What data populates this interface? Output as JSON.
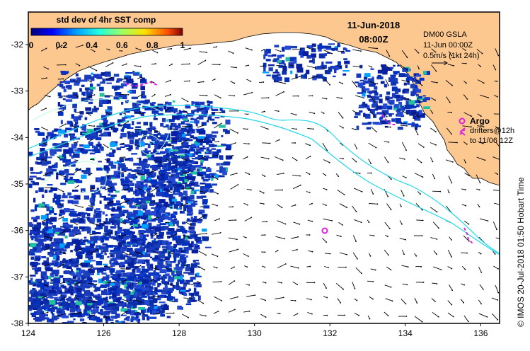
{
  "map": {
    "lon_range": [
      124,
      136.5
    ],
    "lat_range": [
      -38,
      -31.3
    ],
    "lon_ticks": [
      "124",
      "126",
      "128",
      "130",
      "132",
      "134",
      "136"
    ],
    "lat_ticks": [
      "-32",
      "-33",
      "-34",
      "-35",
      "-36",
      "-37",
      "-38"
    ],
    "colors": {
      "land": "#fcc890",
      "no_data": "#ffffff",
      "sst_low": "#0a2fa8",
      "current_track": "#22d8e8",
      "drifter": "#e020e0",
      "frame": "#000000"
    }
  },
  "colorbar": {
    "title": "std dev of 4hr SST comp",
    "tick_labels": [
      "0",
      "0.2",
      "0.4",
      "0.6",
      "0.8",
      "1"
    ],
    "colormap": [
      "#00007f",
      "#0000ff",
      "#00a0ff",
      "#20ffdf",
      "#9fff60",
      "#ffe000",
      "#ff5000",
      "#800000"
    ]
  },
  "header": {
    "date": "11-Jun-2018",
    "time": "08:00Z"
  },
  "legend": {
    "product": "DM00 GSLA",
    "product_time": "11-Jun 00:00Z",
    "scale": "0.5m/s (1kt 24h)"
  },
  "argo": {
    "label": "Argo",
    "drifter_line1": "drifters@12h",
    "drifter_line2": "to 11/06 12Z",
    "float_position": {
      "lon": 131.9,
      "lat": -36.0
    }
  },
  "credit": "© IMOS 20-Jul-2018 01:50 Hobart Time"
}
